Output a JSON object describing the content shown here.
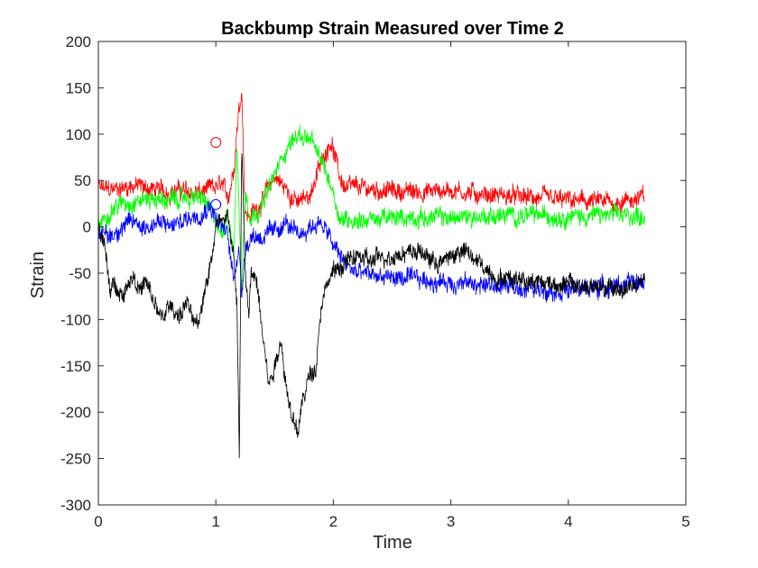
{
  "chart_data": {
    "type": "line",
    "title": "Backbump Strain Measured over Time 2",
    "xlabel": "Time",
    "ylabel": "Strain",
    "xlim": [
      0,
      5
    ],
    "ylim": [
      -300,
      200
    ],
    "xticks": [
      0,
      1,
      2,
      3,
      4,
      5
    ],
    "yticks": [
      -300,
      -250,
      -200,
      -150,
      -100,
      -50,
      0,
      50,
      100,
      150,
      200
    ],
    "grid": false,
    "legend": "none",
    "noise_amplitude": [
      10,
      10,
      10,
      10
    ],
    "series": [
      {
        "color": "#ff0000",
        "x": [
          0,
          0.1,
          0.2,
          0.3,
          0.4,
          0.5,
          0.6,
          0.7,
          0.8,
          0.9,
          1.0,
          1.05,
          1.1,
          1.15,
          1.18,
          1.22,
          1.25,
          1.28,
          1.3,
          1.35,
          1.4,
          1.5,
          1.6,
          1.7,
          1.8,
          1.9,
          1.98,
          2.05,
          2.1,
          2.2,
          2.4,
          2.6,
          2.8,
          3.0,
          3.2,
          3.4,
          3.6,
          3.8,
          4.0,
          4.2,
          4.4,
          4.55,
          4.65
        ],
        "y": [
          42,
          40,
          42,
          45,
          42,
          40,
          38,
          40,
          36,
          38,
          42,
          45,
          30,
          60,
          110,
          150,
          20,
          10,
          15,
          20,
          30,
          55,
          40,
          25,
          35,
          70,
          95,
          55,
          42,
          42,
          40,
          38,
          38,
          40,
          36,
          34,
          32,
          30,
          28,
          27,
          26,
          30,
          32
        ]
      },
      {
        "color": "#00ff00",
        "x": [
          0,
          0.1,
          0.2,
          0.3,
          0.4,
          0.5,
          0.6,
          0.7,
          0.8,
          0.9,
          1.0,
          1.05,
          1.1,
          1.15,
          1.18,
          1.2,
          1.22,
          1.25,
          1.3,
          1.4,
          1.5,
          1.6,
          1.7,
          1.8,
          1.9,
          2.0,
          2.05,
          2.1,
          2.3,
          2.6,
          3.0,
          3.4,
          3.8,
          4.2,
          4.65
        ],
        "y": [
          0,
          18,
          25,
          28,
          30,
          30,
          28,
          30,
          32,
          30,
          5,
          -10,
          20,
          -30,
          85,
          10,
          -70,
          40,
          10,
          25,
          55,
          85,
          100,
          95,
          70,
          40,
          10,
          8,
          8,
          10,
          10,
          12,
          12,
          12,
          12
        ]
      },
      {
        "color": "#0000ff",
        "x": [
          0,
          0.1,
          0.2,
          0.3,
          0.4,
          0.5,
          0.6,
          0.7,
          0.8,
          0.9,
          0.95,
          1.0,
          1.05,
          1.1,
          1.15,
          1.18,
          1.2,
          1.22,
          1.25,
          1.28,
          1.3,
          1.4,
          1.5,
          1.6,
          1.65,
          1.7,
          1.8,
          1.9,
          2.0,
          2.1,
          2.2,
          2.5,
          3.0,
          3.5,
          4.0,
          4.3,
          4.65
        ],
        "y": [
          -5,
          -10,
          0,
          5,
          0,
          5,
          0,
          5,
          12,
          18,
          25,
          10,
          0,
          -10,
          -55,
          -30,
          -25,
          -75,
          -20,
          -15,
          -10,
          -10,
          -5,
          5,
          -5,
          -10,
          0,
          5,
          -20,
          -40,
          -50,
          -55,
          -60,
          -65,
          -68,
          -65,
          -60
        ]
      },
      {
        "color": "#000000",
        "x": [
          0,
          0.05,
          0.1,
          0.15,
          0.2,
          0.25,
          0.3,
          0.35,
          0.4,
          0.45,
          0.5,
          0.55,
          0.6,
          0.65,
          0.7,
          0.75,
          0.8,
          0.85,
          0.9,
          0.95,
          1.0,
          1.05,
          1.1,
          1.15,
          1.18,
          1.2,
          1.22,
          1.25,
          1.28,
          1.3,
          1.35,
          1.4,
          1.45,
          1.5,
          1.55,
          1.6,
          1.65,
          1.7,
          1.75,
          1.8,
          1.85,
          1.9,
          1.95,
          2.0,
          2.1,
          2.2,
          2.3,
          2.5,
          2.7,
          2.9,
          3.0,
          3.1,
          3.2,
          3.4,
          3.6,
          3.8,
          4.0,
          4.2,
          4.4,
          4.65
        ],
        "y": [
          5,
          -20,
          -70,
          -60,
          -75,
          -60,
          -50,
          -70,
          -60,
          -75,
          -90,
          -100,
          -85,
          -90,
          -95,
          -80,
          -100,
          -110,
          -70,
          -40,
          0,
          10,
          15,
          -30,
          -90,
          -250,
          90,
          -50,
          -100,
          -50,
          -60,
          -110,
          -170,
          -150,
          -120,
          -170,
          -210,
          -220,
          -180,
          -160,
          -150,
          -80,
          -60,
          -50,
          -40,
          -30,
          -38,
          -30,
          -25,
          -40,
          -32,
          -25,
          -35,
          -55,
          -55,
          -60,
          -62,
          -65,
          -68,
          -60
        ]
      }
    ],
    "markers": [
      {
        "x": 1.0,
        "y": 91,
        "color": "#ff0000",
        "shape": "circle"
      },
      {
        "x": 1.0,
        "y": 24,
        "color": "#0000ff",
        "shape": "circle"
      }
    ]
  }
}
